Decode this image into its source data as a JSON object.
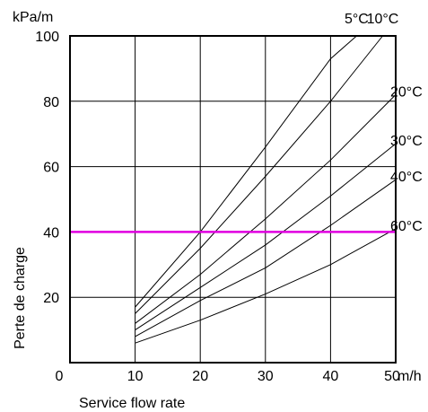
{
  "chart_data": {
    "type": "line",
    "title": "",
    "xlabel": "Service flow rate",
    "ylabel": "Perte de charge",
    "x_unit": "m/h",
    "y_unit": "kPa/m",
    "xlim": [
      0,
      50
    ],
    "ylim": [
      0,
      100
    ],
    "x_ticks": [
      "0",
      "10",
      "20",
      "30",
      "40",
      "50"
    ],
    "y_ticks": [
      "0",
      "20",
      "40",
      "60",
      "80",
      "100"
    ],
    "grid": true,
    "series": [
      {
        "name": "5°C",
        "x": [
          10,
          20,
          30,
          40,
          44
        ],
        "y": [
          17,
          40,
          66,
          93,
          100
        ],
        "label_pos": "top"
      },
      {
        "name": "10°C",
        "x": [
          10,
          20,
          30,
          40,
          48
        ],
        "y": [
          15,
          35,
          57,
          80,
          100
        ],
        "label_pos": "top"
      },
      {
        "name": "20°C",
        "x": [
          10,
          20,
          30,
          40,
          50
        ],
        "y": [
          12,
          27,
          44,
          62,
          82
        ],
        "label_pos": "right"
      },
      {
        "name": "30°C",
        "x": [
          10,
          20,
          30,
          40,
          50
        ],
        "y": [
          10,
          23,
          36,
          51,
          67
        ],
        "label_pos": "right"
      },
      {
        "name": "40°C",
        "x": [
          10,
          20,
          30,
          40,
          50
        ],
        "y": [
          8,
          19,
          29,
          42,
          56
        ],
        "label_pos": "right"
      },
      {
        "name": "60°C",
        "x": [
          10,
          20,
          30,
          40,
          50
        ],
        "y": [
          6,
          13,
          21,
          30,
          41
        ],
        "label_pos": "right"
      }
    ],
    "reference_line": {
      "y": 40,
      "color": "#e000e0"
    },
    "line_color": "#000000"
  }
}
